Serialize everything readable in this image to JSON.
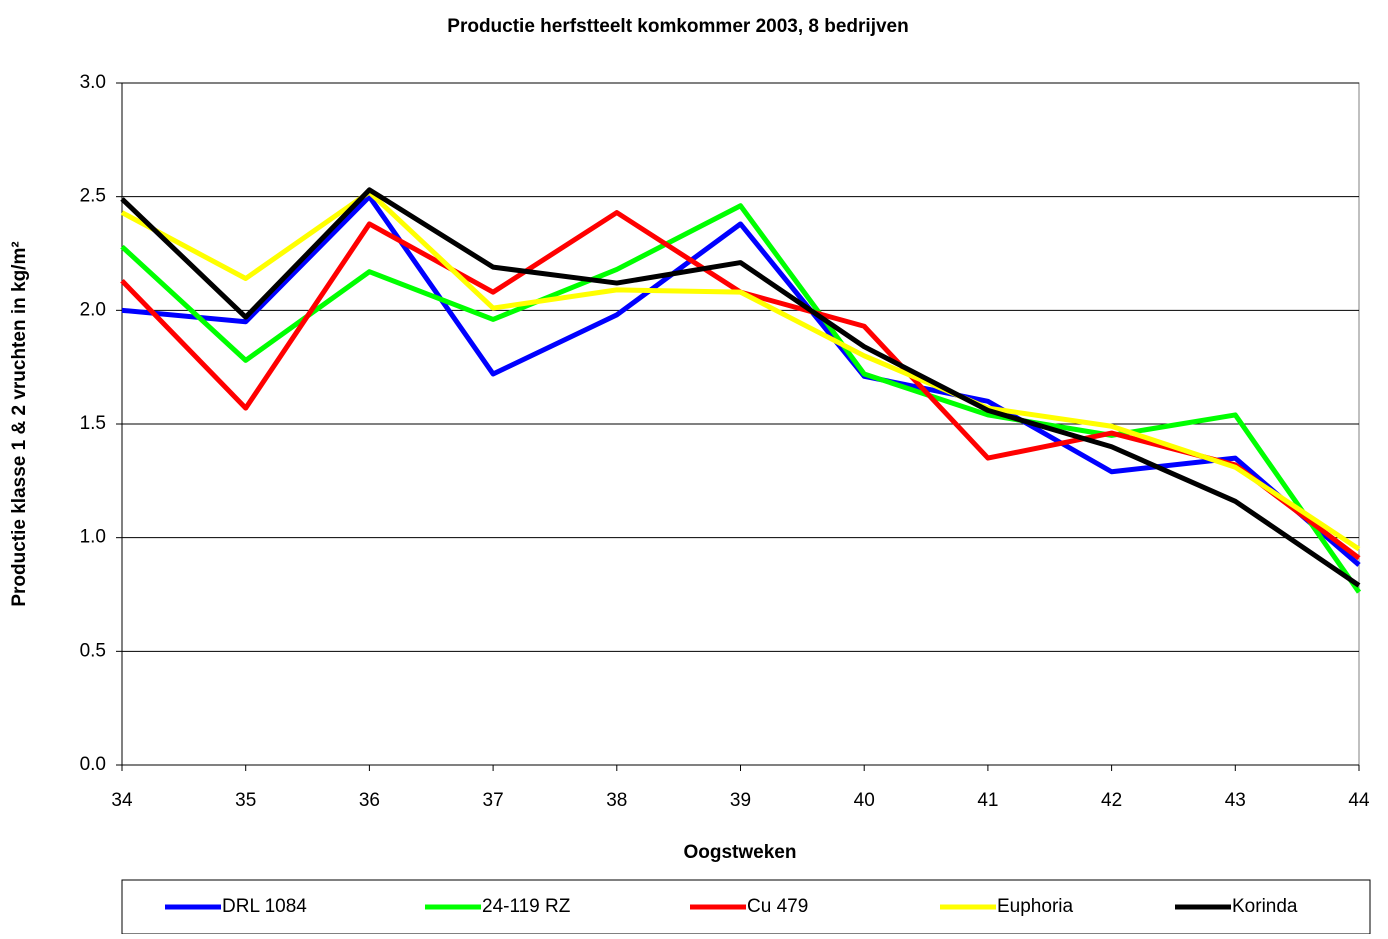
{
  "chart_data": {
    "type": "line",
    "title": "Productie herfstteelt komkommer 2003,  8 bedrijven",
    "x_label": "Oogstweken",
    "y_label": "Productie klasse 1 & 2 vruchten in kg/m²",
    "x": [
      34,
      35,
      36,
      37,
      38,
      39,
      40,
      41,
      42,
      43,
      44
    ],
    "xlim": [
      34,
      44
    ],
    "xticks": [
      34,
      35,
      36,
      37,
      38,
      39,
      40,
      41,
      42,
      43,
      44
    ],
    "ylim": [
      0,
      3
    ],
    "yticks": [
      {
        "value": 0,
        "label": "0.0"
      },
      {
        "value": 0.5,
        "label": "0.5"
      },
      {
        "value": 1,
        "label": "1.0"
      },
      {
        "value": 1.5,
        "label": "1.5"
      },
      {
        "value": 2,
        "label": "2.0"
      },
      {
        "value": 2.5,
        "label": "2.5"
      },
      {
        "value": 3,
        "label": "3.0"
      }
    ],
    "grid": true,
    "legend": "bottom",
    "series": [
      {
        "name": "DRL 1084",
        "color": "#0000ff",
        "values": [
          2.0,
          1.95,
          2.5,
          1.72,
          1.98,
          2.38,
          1.71,
          1.6,
          1.29,
          1.35,
          0.88
        ]
      },
      {
        "name": "24-119 RZ",
        "color": "#00ff00",
        "values": [
          2.28,
          1.78,
          2.17,
          1.96,
          2.18,
          2.46,
          1.72,
          1.54,
          1.45,
          1.54,
          0.76
        ]
      },
      {
        "name": "Cu 479",
        "color": "#ff0000",
        "values": [
          2.13,
          1.57,
          2.38,
          2.08,
          2.43,
          2.08,
          1.93,
          1.35,
          1.46,
          1.32,
          0.91
        ]
      },
      {
        "name": "Euphoria",
        "color": "#ffff00",
        "values": [
          2.43,
          2.14,
          2.52,
          2.01,
          2.09,
          2.08,
          1.8,
          1.57,
          1.49,
          1.31,
          0.95
        ]
      },
      {
        "name": "Korinda",
        "color": "#000000",
        "values": [
          2.49,
          1.97,
          2.53,
          2.19,
          2.12,
          2.21,
          1.84,
          1.56,
          1.4,
          1.16,
          0.79
        ]
      }
    ]
  }
}
